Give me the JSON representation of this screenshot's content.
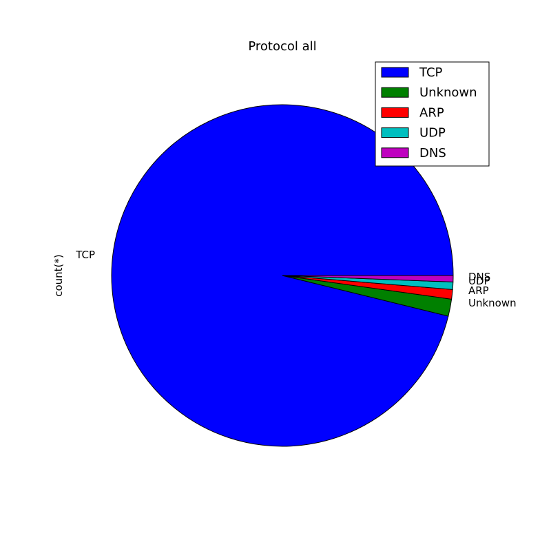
{
  "chart_data": {
    "type": "pie",
    "title": "Protocol all",
    "ylabel": "count(*)",
    "categories": [
      "TCP",
      "Unknown",
      "ARP",
      "UDP",
      "DNS"
    ],
    "values": [
      95.6,
      1.6,
      0.9,
      0.7,
      0.6
    ],
    "colors": [
      "#0000ff",
      "#008000",
      "#ff0000",
      "#00bfbf",
      "#bf00bf"
    ],
    "start_angle_deg": 0,
    "direction": "counterclockwise",
    "legend": {
      "location": "top-right",
      "entries": [
        "TCP",
        "Unknown",
        "ARP",
        "UDP",
        "DNS"
      ]
    }
  }
}
